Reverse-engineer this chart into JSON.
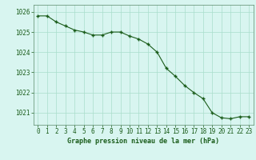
{
  "x": [
    0,
    1,
    2,
    3,
    4,
    5,
    6,
    7,
    8,
    9,
    10,
    11,
    12,
    13,
    14,
    15,
    16,
    17,
    18,
    19,
    20,
    21,
    22,
    23
  ],
  "y": [
    1025.8,
    1025.8,
    1025.5,
    1025.3,
    1025.1,
    1025.0,
    1024.85,
    1024.85,
    1025.0,
    1025.0,
    1024.8,
    1024.65,
    1024.4,
    1024.0,
    1023.2,
    1022.8,
    1022.35,
    1022.0,
    1021.7,
    1021.0,
    1020.75,
    1020.7,
    1020.8,
    1020.8
  ],
  "line_color": "#1a5c1a",
  "marker": "+",
  "bg_color": "#d8f5f0",
  "grid_color": "#aaddcc",
  "xlabel": "Graphe pression niveau de la mer (hPa)",
  "xlabel_color": "#1a5c1a",
  "tick_color": "#1a5c1a",
  "spine_color": "#5a8a6a",
  "ylim": [
    1020.4,
    1026.35
  ],
  "yticks": [
    1021,
    1022,
    1023,
    1024,
    1025,
    1026
  ],
  "xticks": [
    0,
    1,
    2,
    3,
    4,
    5,
    6,
    7,
    8,
    9,
    10,
    11,
    12,
    13,
    14,
    15,
    16,
    17,
    18,
    19,
    20,
    21,
    22,
    23
  ],
  "xtick_labels": [
    "0",
    "1",
    "2",
    "3",
    "4",
    "5",
    "6",
    "7",
    "8",
    "9",
    "10",
    "11",
    "12",
    "13",
    "14",
    "15",
    "16",
    "17",
    "18",
    "19",
    "20",
    "21",
    "22",
    "23"
  ],
  "linewidth": 0.8,
  "markersize": 3.5,
  "tick_fontsize": 5.5,
  "xlabel_fontsize": 6.0
}
